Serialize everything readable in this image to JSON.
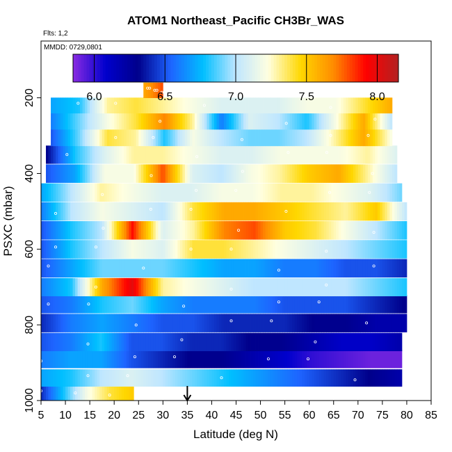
{
  "chart_data": {
    "type": "heatmap",
    "title": "ATOM1 Northeast_Pacific CH3Br_WAS",
    "flights_note": "Flts: 1,2",
    "date_note": "MMDD: 0729,0801",
    "xlabel": "Latitude (deg N)",
    "ylabel": "PSXC (mbar)",
    "xlim": [
      5,
      85
    ],
    "ylim": [
      1000,
      50
    ],
    "y_reversed": true,
    "x_ticks": [
      "5",
      "10",
      "15",
      "20",
      "25",
      "30",
      "35",
      "40",
      "45",
      "50",
      "55",
      "60",
      "65",
      "70",
      "75",
      "80",
      "85"
    ],
    "y_ticks": [
      "200",
      "400",
      "600",
      "800",
      "1000"
    ],
    "colorbar": {
      "min": 5.85,
      "max": 8.15,
      "ticks": [
        "6.0",
        "6.5",
        "7.0",
        "7.5",
        "8.0"
      ],
      "colors": [
        "#8a2be2",
        "#0000cd",
        "#00008b",
        "#1e64ff",
        "#00bfff",
        "#bfe6ff",
        "#ffffe0",
        "#ffd700",
        "#ff8c00",
        "#ff0000",
        "#b22222"
      ]
    },
    "arrow_latitude": 35,
    "levels": [
      {
        "p": 980,
        "start": 5,
        "end": 24,
        "v": [
          6.4,
          6.8,
          7.2,
          7.4,
          7.5
        ]
      },
      {
        "p": 940,
        "start": 5,
        "end": 79,
        "v": [
          6.7,
          6.8,
          7.0,
          7.1,
          7.0,
          6.9,
          6.8,
          6.7,
          6.6,
          6.5,
          6.4,
          6.3,
          6.2
        ]
      },
      {
        "p": 890,
        "start": 5,
        "end": 79,
        "v": [
          6.6,
          6.7,
          6.7,
          6.5,
          6.4,
          6.3,
          6.3,
          6.2,
          6.1,
          6.0,
          5.95,
          5.9,
          5.9
        ]
      },
      {
        "p": 845,
        "start": 5,
        "end": 79,
        "v": [
          6.5,
          6.6,
          6.8,
          6.5,
          6.5,
          6.4,
          6.4,
          6.3,
          6.3,
          6.2,
          6.1,
          6.1,
          6.2
        ]
      },
      {
        "p": 795,
        "start": 5,
        "end": 80,
        "v": [
          6.4,
          6.6,
          6.7,
          6.6,
          6.5,
          6.5,
          6.4,
          6.4,
          6.4,
          6.3,
          6.3,
          6.2,
          6.2
        ]
      },
      {
        "p": 745,
        "start": 5,
        "end": 80,
        "v": [
          6.5,
          6.6,
          6.8,
          6.9,
          6.7,
          6.6,
          6.6,
          6.6,
          6.5,
          6.5,
          6.5,
          6.4,
          6.3
        ]
      },
      {
        "p": 700,
        "start": 5,
        "end": 80,
        "v": [
          6.6,
          6.8,
          7.6,
          8.0,
          7.3,
          7.2,
          7.1,
          7.0,
          7.0,
          7.0,
          7.0,
          6.9,
          6.8
        ]
      },
      {
        "p": 650,
        "start": 5,
        "end": 80,
        "v": [
          6.5,
          6.7,
          6.9,
          6.9,
          6.9,
          6.8,
          6.7,
          6.7,
          6.6,
          6.6,
          6.5,
          6.5,
          6.4
        ]
      },
      {
        "p": 600,
        "start": 5,
        "end": 80,
        "v": [
          6.5,
          6.8,
          7.0,
          7.2,
          7.1,
          7.4,
          7.4,
          7.3,
          7.2,
          7.1,
          7.0,
          6.9,
          6.8
        ]
      },
      {
        "p": 550,
        "start": 5,
        "end": 80,
        "v": [
          6.5,
          6.8,
          7.0,
          7.9,
          7.1,
          7.3,
          7.7,
          7.8,
          7.5,
          7.4,
          7.2,
          7.0,
          6.8
        ]
      },
      {
        "p": 500,
        "start": 5,
        "end": 80,
        "v": [
          6.6,
          7.0,
          7.2,
          7.1,
          7.0,
          7.4,
          7.6,
          7.6,
          7.5,
          7.4,
          7.3,
          7.5,
          7.0
        ]
      },
      {
        "p": 450,
        "start": 5,
        "end": 79,
        "v": [
          6.7,
          7.0,
          7.3,
          7.2,
          7.1,
          7.1,
          7.2,
          7.2,
          7.3,
          7.3,
          7.2,
          7.1,
          6.9
        ]
      },
      {
        "p": 400,
        "start": 6,
        "end": 78,
        "v": [
          6.5,
          6.7,
          7.2,
          7.2,
          7.8,
          7.1,
          7.0,
          7.2,
          7.3,
          7.5,
          7.6,
          7.3,
          7.0
        ]
      },
      {
        "p": 350,
        "start": 6,
        "end": 78,
        "v": [
          6.3,
          6.8,
          7.1,
          7.3,
          7.3,
          7.2,
          7.1,
          7.1,
          7.2,
          7.2,
          7.2,
          7.3,
          7.1
        ]
      },
      {
        "p": 305,
        "start": 7,
        "end": 77,
        "v": [
          6.5,
          6.9,
          7.4,
          7.3,
          6.8,
          7.2,
          7.0,
          6.9,
          6.9,
          7.0,
          7.3,
          7.6,
          7.2
        ]
      },
      {
        "p": 262,
        "start": 7,
        "end": 77,
        "v": [
          6.6,
          6.9,
          7.2,
          7.4,
          7.7,
          7.3,
          6.6,
          7.1,
          7.0,
          6.8,
          7.2,
          7.6,
          7.0
        ]
      },
      {
        "p": 220,
        "start": 7,
        "end": 77,
        "v": [
          6.7,
          6.8,
          7.3,
          7.4,
          7.3,
          7.2,
          7.1,
          7.1,
          7.1,
          7.2,
          7.2,
          7.4,
          7.6
        ]
      },
      {
        "p": 180,
        "start": 26,
        "end": 30,
        "v": [
          7.6,
          7.8
        ]
      }
    ]
  }
}
